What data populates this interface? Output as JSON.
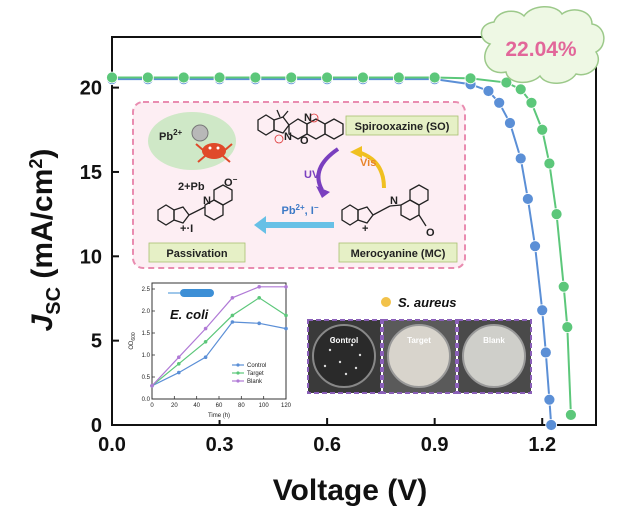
{
  "chart_data": {
    "type": "line",
    "xlabel": "Voltage (V)",
    "ylabel_main": "J",
    "ylabel_sub": "SC",
    "ylabel_unit": " (mA/cm",
    "ylabel_sup": "2",
    "ylabel_close": ")",
    "xlim": [
      0.0,
      1.35
    ],
    "ylim": [
      0,
      23
    ],
    "x_ticks": [
      "0.0",
      "0.3",
      "0.6",
      "0.9",
      "1.2"
    ],
    "y_ticks": [
      "0",
      "5",
      "10",
      "15",
      "20"
    ],
    "annotation": "22.04%",
    "series": [
      {
        "color": "#5b8fd6",
        "x": [
          0.0,
          0.1,
          0.2,
          0.3,
          0.4,
          0.5,
          0.6,
          0.7,
          0.8,
          0.9,
          1.0,
          1.05,
          1.08,
          1.11,
          1.14,
          1.16,
          1.18,
          1.2,
          1.21,
          1.22,
          1.225
        ],
        "y": [
          20.5,
          20.5,
          20.5,
          20.5,
          20.5,
          20.5,
          20.5,
          20.5,
          20.5,
          20.5,
          20.2,
          19.8,
          19.1,
          17.9,
          15.8,
          13.4,
          10.6,
          6.8,
          4.3,
          1.5,
          0.0
        ]
      },
      {
        "color": "#5cc77a",
        "x": [
          0.0,
          0.1,
          0.2,
          0.3,
          0.4,
          0.5,
          0.6,
          0.7,
          0.8,
          0.9,
          1.0,
          1.1,
          1.14,
          1.17,
          1.2,
          1.22,
          1.24,
          1.26,
          1.27,
          1.28
        ],
        "y": [
          20.6,
          20.6,
          20.6,
          20.6,
          20.6,
          20.6,
          20.6,
          20.6,
          20.6,
          20.6,
          20.55,
          20.3,
          19.9,
          19.1,
          17.5,
          15.5,
          12.5,
          8.2,
          5.8,
          0.6
        ]
      }
    ]
  },
  "scheme": {
    "pb": "Pb",
    "pb_sup": "2+",
    "so_label": "Spirooxazine (SO)",
    "mc_label": "Merocyanine (MC)",
    "passivation_label": "Passivation",
    "uv_label": "UV",
    "vis_label": "Vis",
    "pb_i_label": "Pb",
    "pb_i_sup": "2+",
    "pb_i_rest": ", I",
    "pb_i_minus": "−",
    "pass_top": "2+",
    "pass_top_pb": "Pb",
    "pass_top_o": "O",
    "pass_minus": "−",
    "pass_n": "N",
    "pass_plus": "+",
    "pass_i": "·I",
    "so_n": "N",
    "so_o": "O",
    "mc_n": "N",
    "mc_o": "O",
    "mc_plus": "+"
  },
  "inset": {
    "title": "E. coli",
    "ylabel": "OD",
    "ylabel_sub": "600",
    "xlabel": "Time (h)",
    "x_ticks": [
      "0",
      "20",
      "40",
      "60",
      "80",
      "100",
      "120"
    ],
    "y_ticks": [
      "0.0",
      "0.5",
      "1.0",
      "1.5",
      "2.0",
      "2.5"
    ],
    "legend": [
      "Control",
      "Target",
      "Blank"
    ],
    "colors": [
      "#5b8fd6",
      "#5cc77a",
      "#b07ad6"
    ],
    "x": [
      0,
      24,
      48,
      72,
      96,
      120
    ],
    "control": [
      0.3,
      0.6,
      0.95,
      1.75,
      1.72,
      1.6
    ],
    "target": [
      0.3,
      0.8,
      1.3,
      1.9,
      2.3,
      1.9
    ],
    "blank": [
      0.3,
      0.95,
      1.6,
      2.3,
      2.55,
      2.55
    ]
  },
  "photos": {
    "legend": "S. aureus",
    "labels": [
      "Control",
      "Target",
      "Blank"
    ]
  }
}
